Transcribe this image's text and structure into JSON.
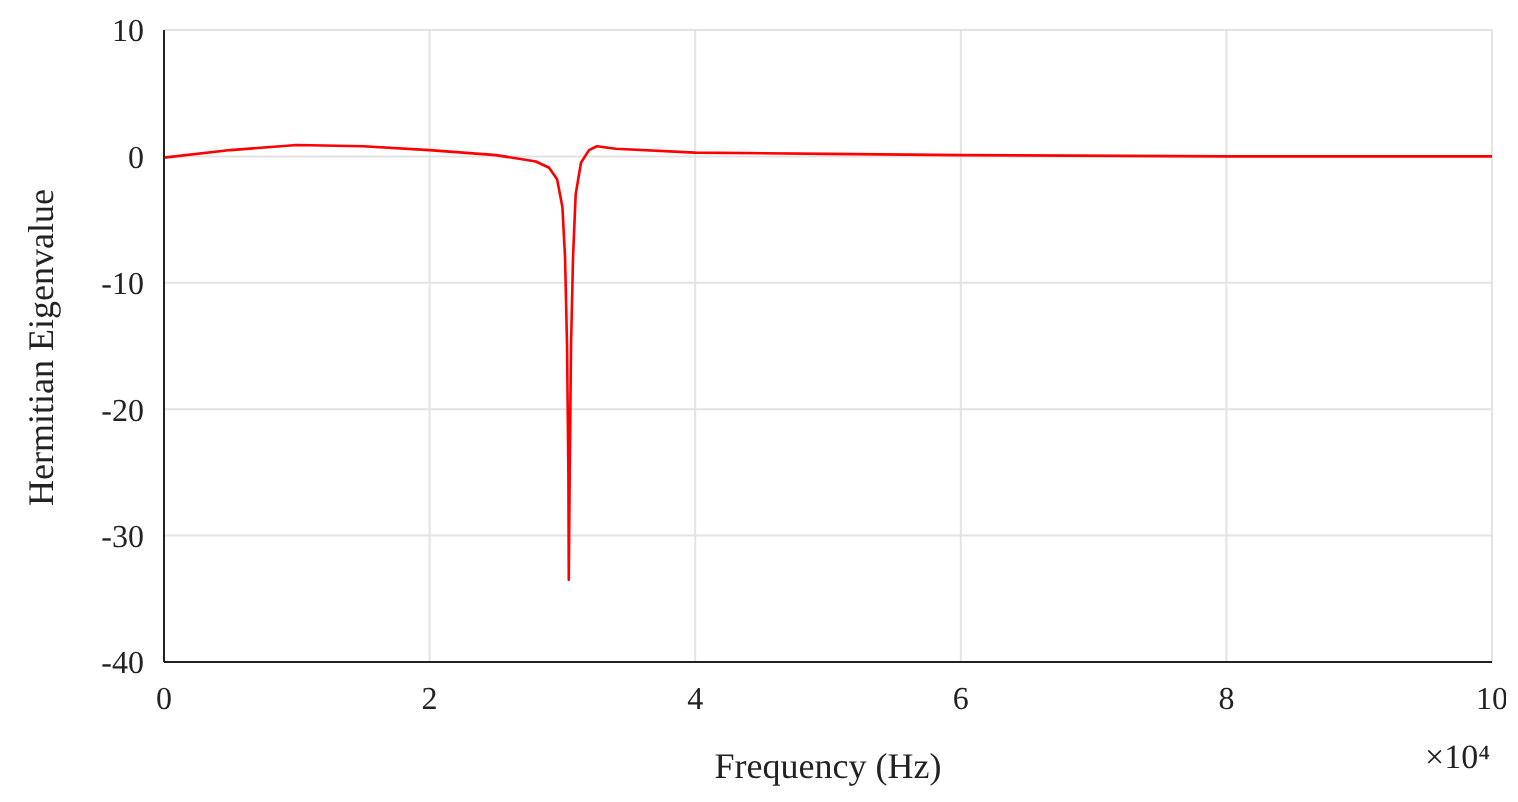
{
  "chart_data": {
    "type": "line",
    "xlabel": "Frequency (Hz)",
    "ylabel": "Hermitian Eigenvalue",
    "annotations": [
      "×10⁴"
    ],
    "xlim": [
      0,
      10
    ],
    "xticks": [
      0,
      2,
      4,
      6,
      8,
      10
    ],
    "ylim": [
      -40,
      10
    ],
    "yticks": [
      -40,
      -30,
      -20,
      -10,
      0,
      10
    ],
    "grid": true,
    "marker": "none",
    "line_style": "solid",
    "x": [
      0,
      0.5,
      1,
      1.5,
      2,
      2.5,
      2.8,
      2.9,
      2.96,
      3,
      3.02,
      3.035,
      3.045,
      3.048,
      3.055,
      3.065,
      3.08,
      3.1,
      3.14,
      3.2,
      3.26,
      3.4,
      4,
      5,
      6,
      8,
      10
    ],
    "series": [
      {
        "color": "#ff0000",
        "values": [
          -0.1,
          0.5,
          0.9,
          0.8,
          0.5,
          0.1,
          -0.4,
          -0.9,
          -1.8,
          -4,
          -8,
          -15,
          -25,
          -33.5,
          -25,
          -15,
          -8,
          -3,
          -0.5,
          0.5,
          0.8,
          0.6,
          0.3,
          0.2,
          0.1,
          0,
          0
        ]
      }
    ]
  }
}
